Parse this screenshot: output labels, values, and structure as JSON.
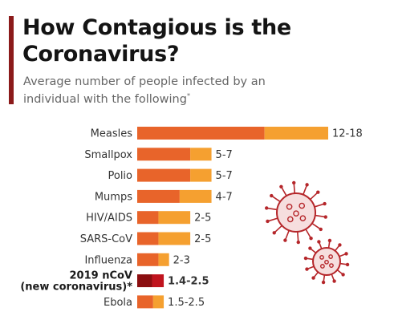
{
  "title": "How Contagious is the Coronavirus?",
  "subtitle": "Average number of people infected by an individual with the following",
  "subtitle_mark": "*",
  "colors": {
    "low": "#e8642a",
    "range": "#f5a030",
    "highlight_low": "#8b0e10",
    "highlight_range": "#c0141e",
    "accent": "#8b1a1a",
    "virus": "#b5262a"
  },
  "decorations": [
    "coronavirus-illustration-icon",
    "coronavirus-illustration-icon"
  ],
  "chart_data": {
    "type": "bar",
    "stacked_range": true,
    "categories": [
      "Measles",
      "Smallpox",
      "Polio",
      "Mumps",
      "HIV/AIDS",
      "SARS-CoV",
      "Influenza",
      "2019 nCoV (new coronavirus)*",
      "Ebola"
    ],
    "category_lines": [
      [
        "Measles"
      ],
      [
        "Smallpox"
      ],
      [
        "Polio"
      ],
      [
        "Mumps"
      ],
      [
        "HIV/AIDS"
      ],
      [
        "SARS-CoV"
      ],
      [
        "Influenza"
      ],
      [
        "2019 nCoV",
        "(new coronavirus)*"
      ],
      [
        "Ebola"
      ]
    ],
    "low": [
      12,
      5,
      5,
      4,
      2,
      2,
      2,
      1.4,
      1.5
    ],
    "high": [
      18,
      7,
      7,
      7,
      5,
      5,
      3,
      2.5,
      2.5
    ],
    "labels": [
      "12-18",
      "5-7",
      "5-7",
      "4-7",
      "2-5",
      "2-5",
      "2-3",
      "1.4-2.5",
      "1.5-2.5"
    ],
    "highlight_index": 7,
    "xlim": [
      0,
      18
    ],
    "grid": false,
    "legend": "none"
  }
}
